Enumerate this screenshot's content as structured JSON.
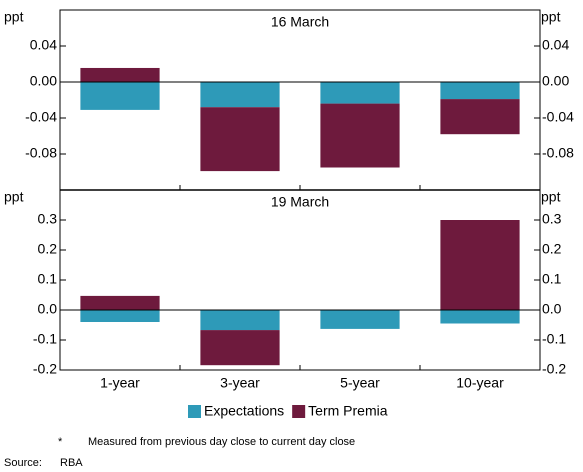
{
  "chart_data": [
    {
      "type": "bar",
      "stacked": true,
      "title": "16 March",
      "y_label": "ppt",
      "y2_label": "ppt",
      "categories": [
        null,
        null,
        null,
        null
      ],
      "series": [
        {
          "name": "Expectations",
          "color": "#2e9ab8",
          "values": [
            -0.031,
            -0.028,
            -0.024,
            -0.019
          ]
        },
        {
          "name": "Term Premia",
          "color": "#6e1a3d",
          "values": [
            0.0156,
            -0.071,
            -0.071,
            -0.039
          ]
        }
      ],
      "ylim": [
        -0.12,
        0.08
      ],
      "yticks": [
        0.04,
        {
          "value": 0,
          "label": "0.00"
        },
        -0.04,
        -0.08
      ]
    },
    {
      "type": "bar",
      "stacked": true,
      "title": "19 March",
      "y_label": "ppt",
      "y2_label": "ppt",
      "categories": [
        "1-year",
        "3-year",
        "5-year",
        "10-year"
      ],
      "series": [
        {
          "name": "Expectations",
          "color": "#2e9ab8",
          "values": [
            -0.04,
            -0.067,
            -0.063,
            -0.045
          ]
        },
        {
          "name": "Term Premia",
          "color": "#6e1a3d",
          "values": [
            0.047,
            -0.117,
            0,
            0.3
          ]
        }
      ],
      "ylim": [
        -0.2,
        0.4
      ],
      "yticks": [
        0.3,
        0.2,
        0.1,
        {
          "value": 0,
          "label": "0.0"
        },
        -0.1,
        -0.2
      ]
    }
  ],
  "footnote": {
    "marker": "*",
    "text": "Measured from previous day close to current day close"
  },
  "source": {
    "label": "Source:",
    "text": "RBA"
  }
}
